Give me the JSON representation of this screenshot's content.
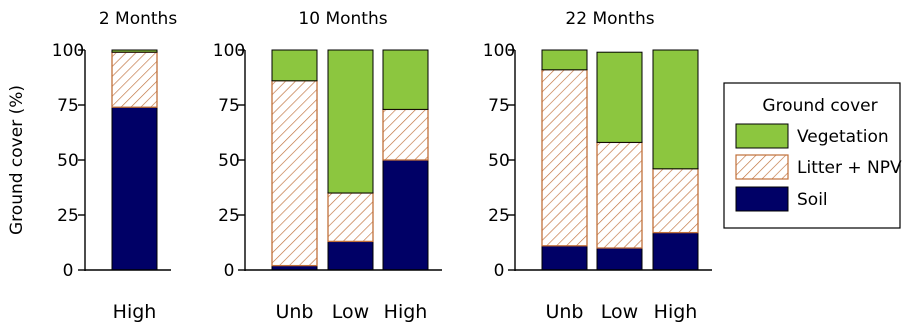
{
  "colors": {
    "vegetation": "#8cc63f",
    "litter_stroke": "#c0703a",
    "soil": "#000066",
    "axis": "#000000"
  },
  "legend": {
    "title": "Ground cover",
    "entries": [
      {
        "name": "Vegetation",
        "style": "solid-green"
      },
      {
        "name": "Litter + NPV",
        "style": "hatched-orange"
      },
      {
        "name": "Soil",
        "style": "solid-navy"
      }
    ]
  },
  "chart_data": [
    {
      "type": "bar",
      "stacked": true,
      "title": "2 Months",
      "ylabel": "Ground cover (%)",
      "ylim": [
        0,
        100
      ],
      "yticks": [
        "0",
        "25",
        "50",
        "75",
        "100"
      ],
      "categories": [
        "High"
      ],
      "series": [
        {
          "name": "Soil",
          "values": [
            74
          ]
        },
        {
          "name": "Litter + NPV",
          "values": [
            25
          ]
        },
        {
          "name": "Vegetation",
          "values": [
            1
          ]
        }
      ]
    },
    {
      "type": "bar",
      "stacked": true,
      "title": "10 Months",
      "ylim": [
        0,
        100
      ],
      "yticks": [
        "0",
        "25",
        "50",
        "75",
        "100"
      ],
      "categories": [
        "Unb",
        "Low",
        "High"
      ],
      "series": [
        {
          "name": "Soil",
          "values": [
            2,
            13,
            50
          ]
        },
        {
          "name": "Litter + NPV",
          "values": [
            84,
            22,
            23
          ]
        },
        {
          "name": "Vegetation",
          "values": [
            14,
            65,
            27
          ]
        }
      ]
    },
    {
      "type": "bar",
      "stacked": true,
      "title": "22 Months",
      "ylim": [
        0,
        100
      ],
      "yticks": [
        "0",
        "25",
        "50",
        "75",
        "100"
      ],
      "categories": [
        "Unb",
        "Low",
        "High"
      ],
      "series": [
        {
          "name": "Soil",
          "values": [
            11,
            10,
            17
          ]
        },
        {
          "name": "Litter + NPV",
          "values": [
            80,
            48,
            29
          ]
        },
        {
          "name": "Vegetation",
          "values": [
            9,
            41,
            54
          ]
        }
      ]
    }
  ]
}
